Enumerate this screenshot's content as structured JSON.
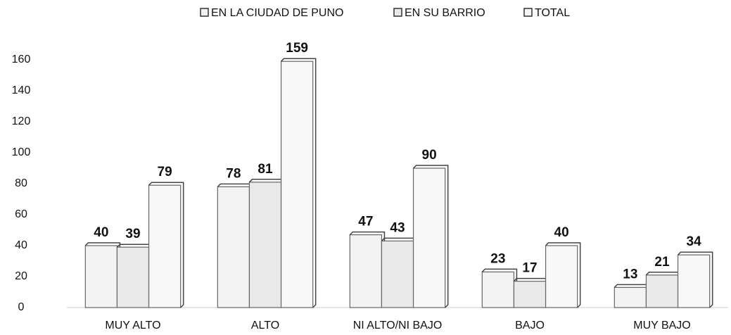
{
  "chart_data": {
    "type": "bar",
    "categories": [
      "MUY ALTO",
      "ALTO",
      "NI ALTO/NI BAJO",
      "BAJO",
      "MUY BAJO"
    ],
    "series": [
      {
        "name": "EN LA CIUDAD DE PUNO",
        "color": "#f3f3f3",
        "values": [
          40,
          78,
          47,
          23,
          13
        ]
      },
      {
        "name": "EN SU BARRIO",
        "color": "#e9e9e9",
        "values": [
          39,
          81,
          43,
          17,
          21
        ]
      },
      {
        "name": "TOTAL",
        "color": "#f8f8f8",
        "values": [
          79,
          159,
          90,
          40,
          34
        ]
      }
    ],
    "ylim": [
      0,
      170
    ],
    "yticks": [
      0,
      20,
      40,
      60,
      80,
      100,
      120,
      140,
      160
    ],
    "grid": false,
    "legend": "top"
  }
}
